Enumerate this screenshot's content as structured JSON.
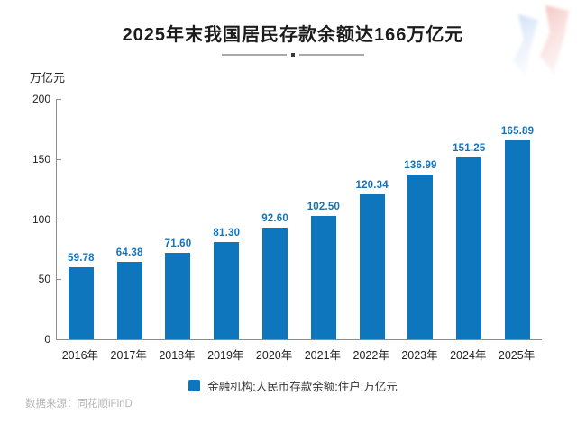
{
  "page": {
    "title": "2025年末我国居民存款余额达166万亿元",
    "source": "数据来源：同花顺iFinD"
  },
  "chart_data": {
    "type": "bar",
    "title": "2025年末我国居民存款余额达166万亿元",
    "unit_label": "万亿元",
    "categories": [
      "2016年",
      "2017年",
      "2018年",
      "2019年",
      "2020年",
      "2021年",
      "2022年",
      "2023年",
      "2024年",
      "2025年"
    ],
    "values": [
      59.78,
      64.38,
      71.6,
      81.3,
      92.6,
      102.5,
      120.34,
      136.99,
      151.25,
      165.89
    ],
    "value_labels": [
      "59.78",
      "64.38",
      "71.60",
      "81.30",
      "92.60",
      "102.50",
      "120.34",
      "136.99",
      "151.25",
      "165.89"
    ],
    "legend": "金融机构:人民币存款余额:住户:万亿元",
    "ylim": [
      0,
      200
    ],
    "yticks": [
      0,
      50,
      100,
      150,
      200
    ],
    "grid": false,
    "legend_position": "bottom",
    "bar_color": "#0e76bd",
    "value_label_color": "#1374bd",
    "deco_blue": "#c9ddf6",
    "deco_pink": "#f2c5c2"
  }
}
